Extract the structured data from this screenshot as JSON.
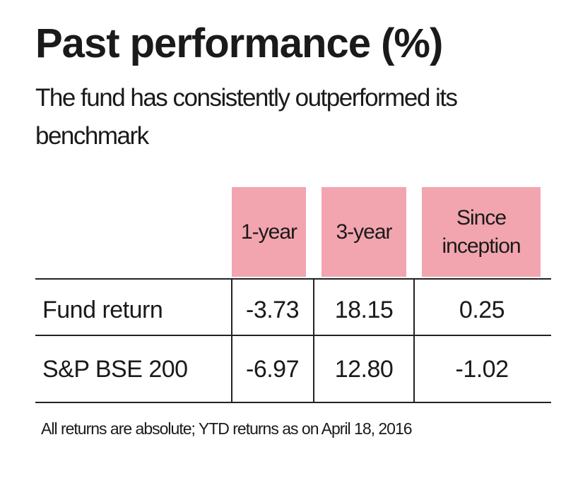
{
  "header": {
    "title": "Past performance (%)",
    "subtitle": "The fund has consistently outperformed its benchmark"
  },
  "table": {
    "columns": [
      "1-year",
      "3-year",
      "Since inception"
    ],
    "rows": [
      [
        "Fund return",
        "-3.73",
        "18.15",
        "0.25"
      ],
      [
        "S&P BSE 200",
        "-6.97",
        "12.80",
        "-1.02"
      ]
    ]
  },
  "footnote": "All returns are absolute; YTD returns as on April 18, 2016"
}
